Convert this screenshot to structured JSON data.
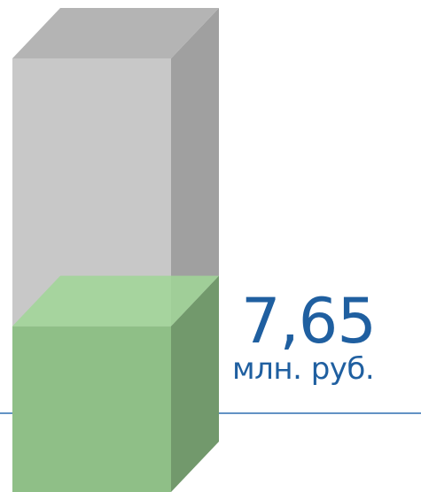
{
  "chart_data": {
    "type": "bar",
    "style": "3d-stacked-cylinder-box",
    "categories": [
      ""
    ],
    "series": [
      {
        "values": [
          7.65
        ],
        "color": "#8fbf87"
      },
      {
        "values": [
          12.35
        ],
        "color": "#c8c8c8"
      }
    ],
    "total": 20.0,
    "value_label": "7,65",
    "unit_label": "млн. руб.",
    "axis_color": "#2e6fb0",
    "ylim": [
      0,
      20
    ],
    "grid": false,
    "legend": "none"
  }
}
